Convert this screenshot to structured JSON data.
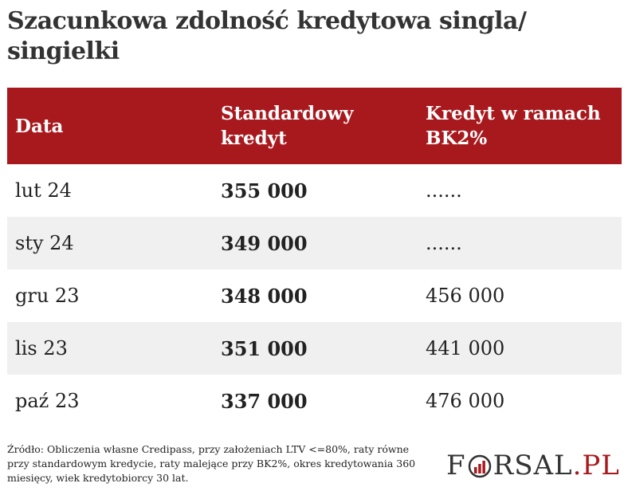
{
  "title": "Szacunkowa zdolność kredytowa singla/ singielki",
  "table": {
    "headers": [
      "Data",
      "Standardowy kredyt",
      "Kredyt w ramach BK2%"
    ],
    "rows": [
      {
        "date": "lut 24",
        "standard": "355 000",
        "bk2": "......"
      },
      {
        "date": "sty 24",
        "standard": "349 000",
        "bk2": "......"
      },
      {
        "date": "gru 23",
        "standard": "348 000",
        "bk2": "456 000"
      },
      {
        "date": "lis 23",
        "standard": "351 000",
        "bk2": "441 000"
      },
      {
        "date": "paź 23",
        "standard": "337 000",
        "bk2": "476 000"
      }
    ]
  },
  "footer": "Źródło: Obliczenia własne Credipass, przy założeniach LTV <=80%, raty równe przy standardowym kredycie, raty malejące przy BK2%, okres kredytowania 360 miesięcy, wiek kredytobiorcy 30 lat.",
  "logo": {
    "part1": "F",
    "part2": "RSAL",
    "part3": ".PL"
  },
  "colors": {
    "header_bg": "#a8191e",
    "row_alt_bg": "#f0f0f0",
    "logo_accent": "#a8191e"
  }
}
